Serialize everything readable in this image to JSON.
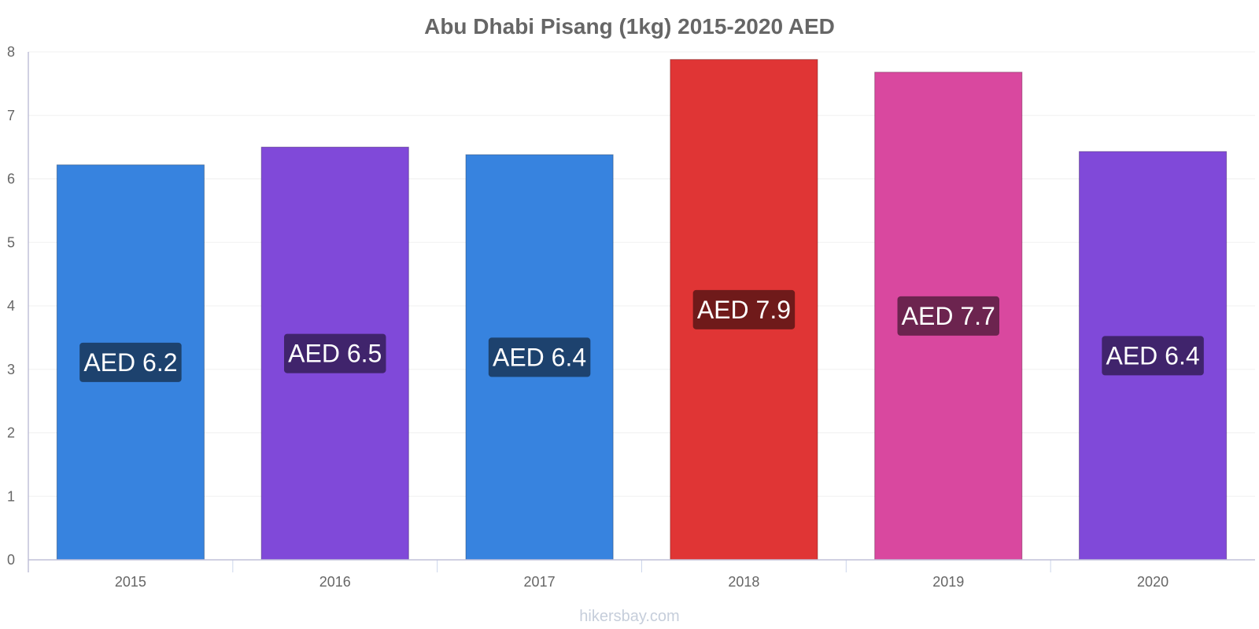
{
  "chart_data": {
    "type": "bar",
    "title": "Abu Dhabi Pisang (1kg) 2015-2020 AED",
    "categories": [
      "2015",
      "2016",
      "2017",
      "2018",
      "2019",
      "2020"
    ],
    "values": [
      6.22,
      6.5,
      6.38,
      7.88,
      7.68,
      6.43
    ],
    "data_labels": [
      "AED 6.2",
      "AED 6.5",
      "AED 6.4",
      "AED 7.9",
      "AED 7.7",
      "AED 6.4"
    ],
    "ylim": [
      0,
      8
    ],
    "yticks": [
      0,
      1,
      2,
      3,
      4,
      5,
      6,
      7,
      8
    ],
    "xlabel": "",
    "ylabel": "",
    "grid": true,
    "legend": "none",
    "bar_colors": [
      "#3783df",
      "#8049d9",
      "#3783df",
      "#e03535",
      "#d9489f",
      "#8049d9"
    ],
    "label_colors": [
      "#1d426e",
      "#40246c",
      "#1d426e",
      "#6f1a1a",
      "#6c244f",
      "#40246c"
    ]
  },
  "watermark": "hikersbay.com"
}
